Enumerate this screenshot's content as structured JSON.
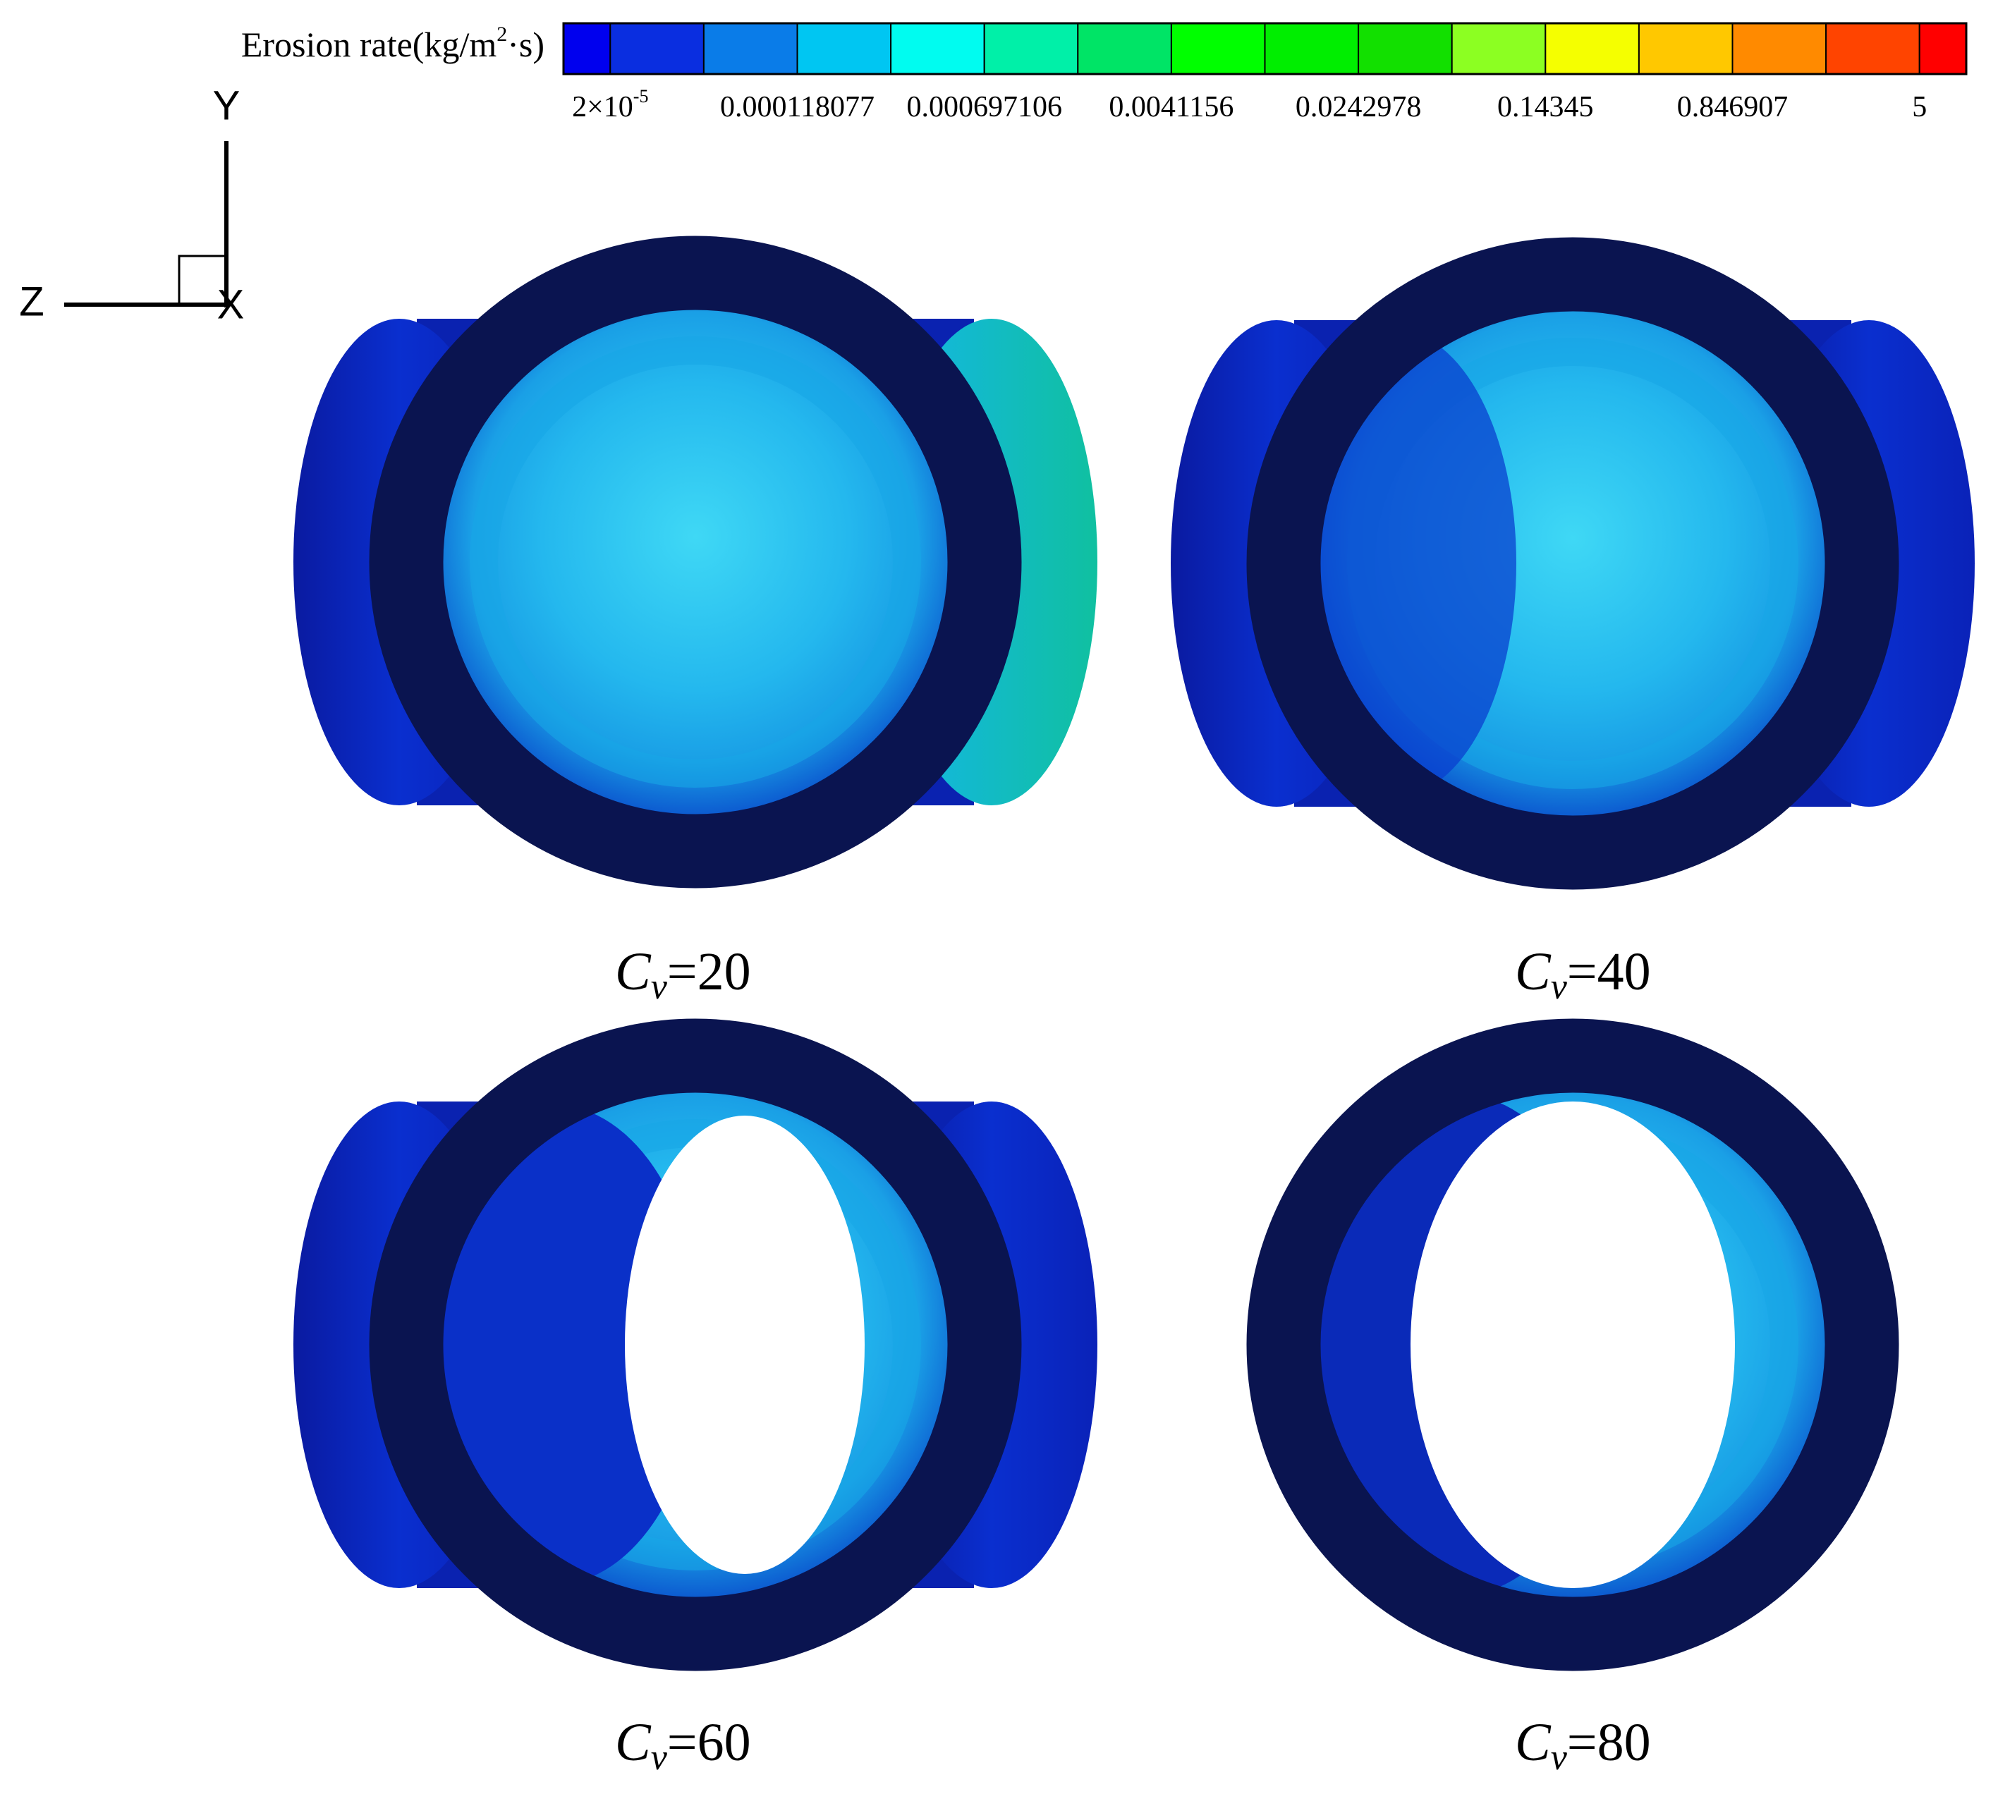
{
  "legend": {
    "title": {
      "text": "Erosion rate(kg/m",
      "superscript": "2",
      "suffix": "·s)"
    },
    "labels": [
      {
        "text": "2×10",
        "superscript": "-5"
      },
      {
        "text": "0.000118077"
      },
      {
        "text": "0.000697106"
      },
      {
        "text": "0.0041156"
      },
      {
        "text": "0.0242978"
      },
      {
        "text": "0.14345"
      },
      {
        "text": "0.846907"
      },
      {
        "text": "5"
      }
    ],
    "colors": [
      "#0000ee",
      "#0a2ee0",
      "#0a7ce8",
      "#00c6f2",
      "#00fcf0",
      "#00f0a8",
      "#00e466",
      "#00ff00",
      "#00ee00",
      "#12e000",
      "#8cff22",
      "#f5ff00",
      "#ffc800",
      "#ff8a00",
      "#ff4400",
      "#ff0000"
    ]
  },
  "axes": {
    "y": "Y",
    "z": "Z",
    "x": "X"
  },
  "panels": [
    {
      "variable": "C",
      "subscript": "v",
      "value": "=20"
    },
    {
      "variable": "C",
      "subscript": "v",
      "value": "=40"
    },
    {
      "variable": "C",
      "subscript": "v",
      "value": "=60"
    },
    {
      "variable": "C",
      "subscript": "v",
      "value": "=80"
    }
  ]
}
